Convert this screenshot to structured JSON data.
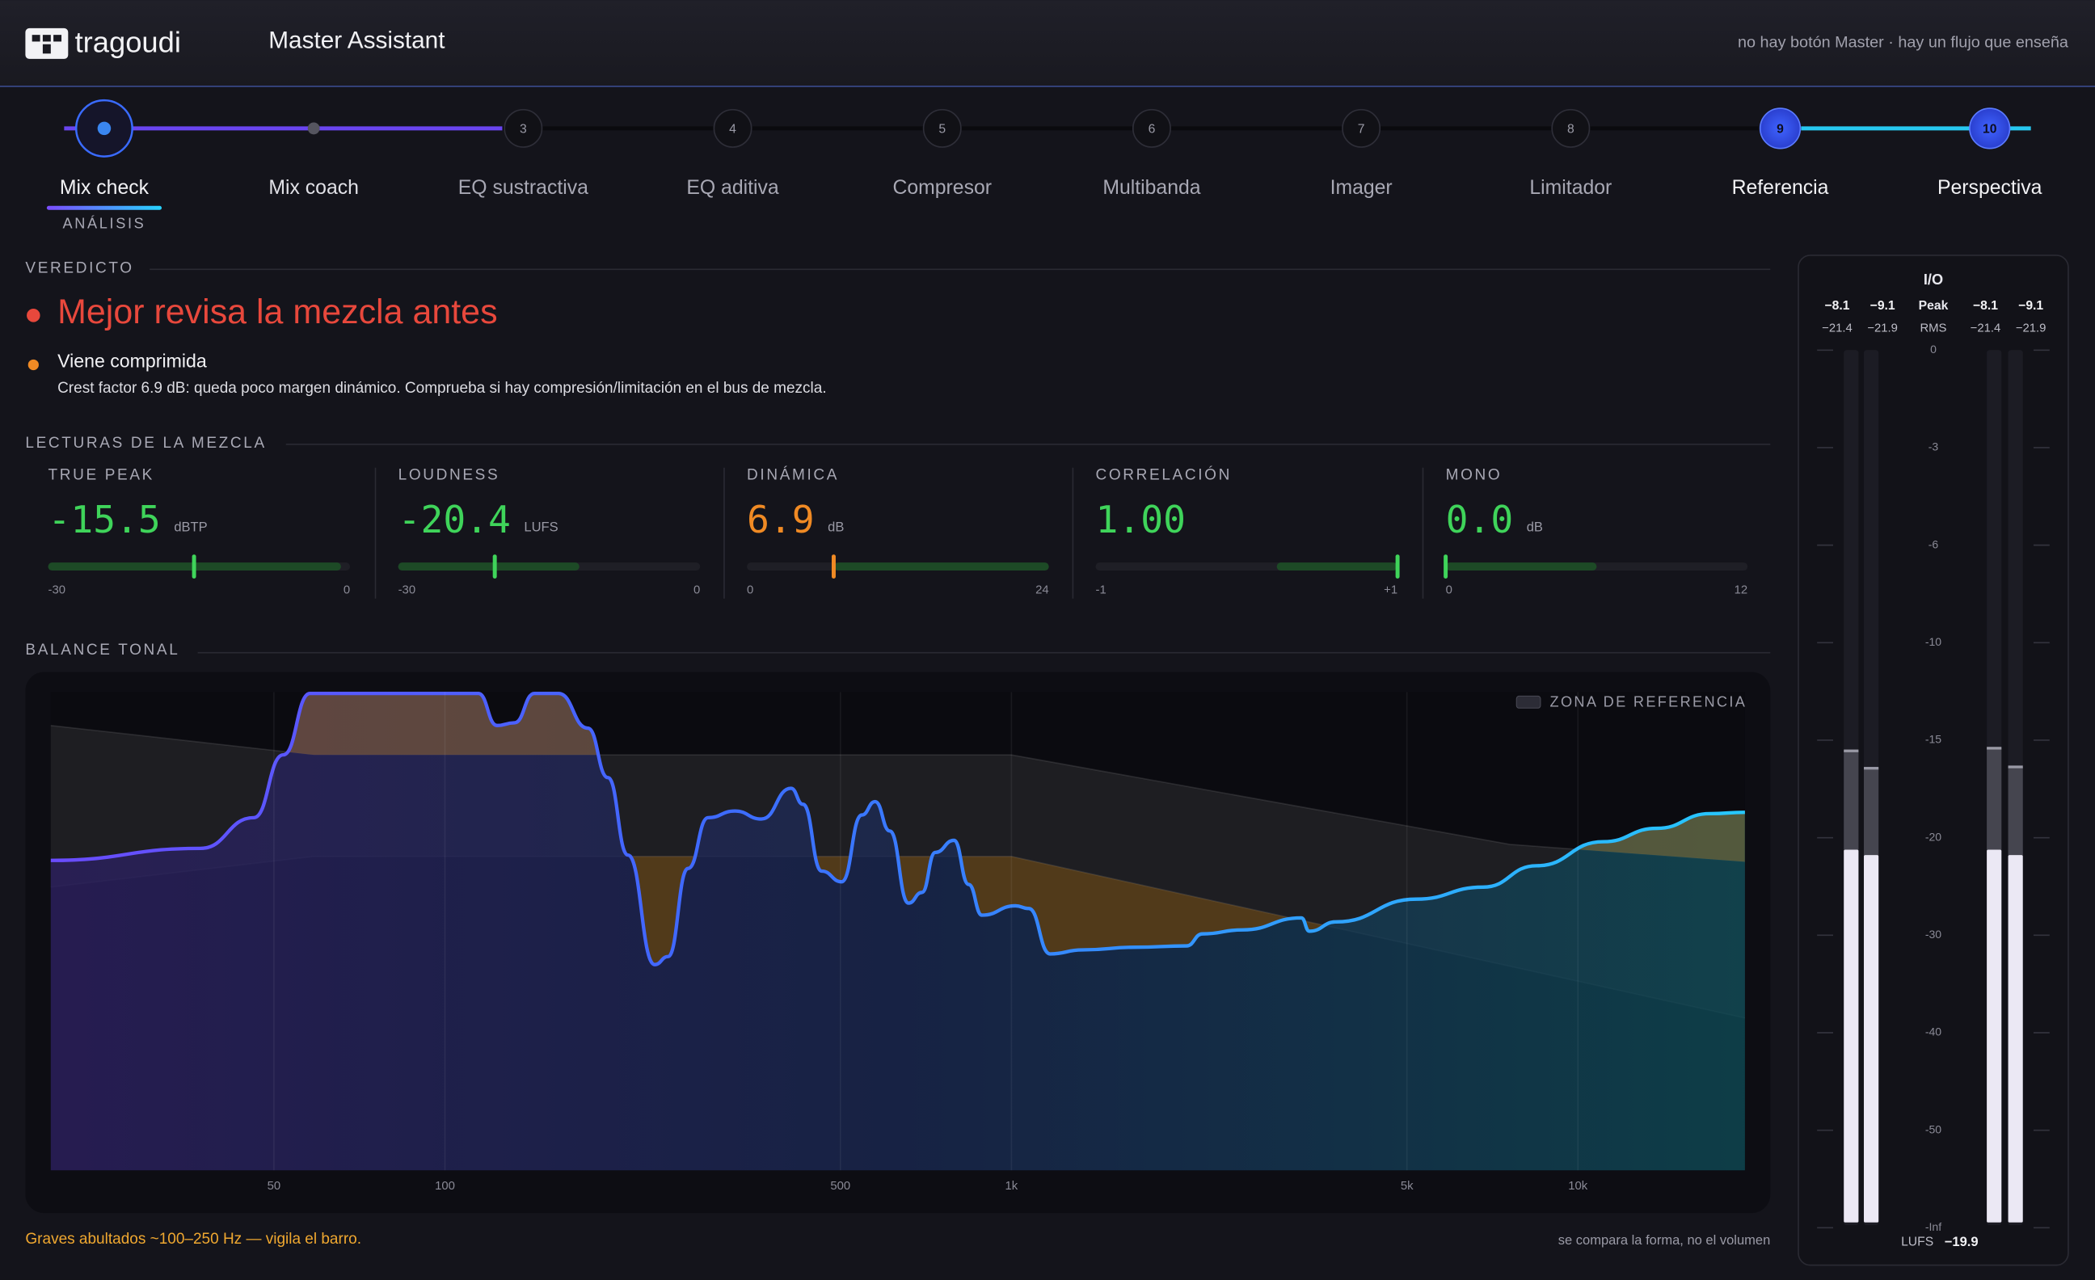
{
  "header": {
    "brand": "tragoudi",
    "title": "Master Assistant",
    "tagline": "no hay botón Master · hay un flujo que enseña"
  },
  "steps": [
    {
      "label": "Mix check",
      "sublabel": "ANÁLISIS"
    },
    {
      "label": "Mix coach"
    },
    {
      "number": "3",
      "label": "EQ sustractiva"
    },
    {
      "number": "4",
      "label": "EQ aditiva"
    },
    {
      "number": "5",
      "label": "Compresor"
    },
    {
      "number": "6",
      "label": "Multibanda"
    },
    {
      "number": "7",
      "label": "Imager"
    },
    {
      "number": "8",
      "label": "Limitador"
    },
    {
      "number": "9",
      "label": "Referencia"
    },
    {
      "number": "10",
      "label": "Perspectiva"
    }
  ],
  "verdict": {
    "heading": "VEREDICTO",
    "title": "Mejor revisa la mezcla antes",
    "issue": "Viene comprimida",
    "detail": "Crest factor 6.9 dB: queda poco margen dinámico. Comprueba si hay compresión/limitación en el bus de mezcla."
  },
  "readings": {
    "heading": "LECTURAS DE LA MEZCLA",
    "items": [
      {
        "label": "TRUE PEAK",
        "value": "-15.5",
        "unit": "dBTP",
        "min": "-30",
        "max": "0",
        "color": "#3fd45a"
      },
      {
        "label": "LOUDNESS",
        "value": "-20.4",
        "unit": "LUFS",
        "min": "-30",
        "max": "0",
        "color": "#3fd45a"
      },
      {
        "label": "DINÁMICA",
        "value": "6.9",
        "unit": "dB",
        "min": "0",
        "max": "24",
        "color": "#f08a24"
      },
      {
        "label": "CORRELACIÓN",
        "value": "1.00",
        "min": "-1",
        "max": "+1",
        "color": "#3fd45a"
      },
      {
        "label": "MONO",
        "value": "0.0",
        "unit": "dB",
        "min": "0",
        "max": "12",
        "color": "#3fd45a"
      }
    ]
  },
  "tonal_balance": {
    "heading": "BALANCE TONAL",
    "legend": "ZONA DE REFERENCIA",
    "freq_labels": [
      "50",
      "100",
      "500",
      "1k",
      "5k",
      "10k"
    ],
    "note": "Graves abultados ~100–250 Hz — vigila el barro.",
    "footnote": "se compara la forma, no el volumen"
  },
  "meters": {
    "title": "I/O",
    "peak_label": "Peak",
    "rms_label": "RMS",
    "input": {
      "peak": [
        "−8.1",
        "−9.1"
      ],
      "rms": [
        "−21.4",
        "−21.9"
      ]
    },
    "output": {
      "peak": [
        "−8.1",
        "−9.1"
      ],
      "rms": [
        "−21.4",
        "−21.9"
      ]
    },
    "scale": [
      "0",
      "-3",
      "-6",
      "-10",
      "-15",
      "-20",
      "-30",
      "-40",
      "-50",
      "-Inf"
    ],
    "lufs_label": "LUFS",
    "lufs": "−19.9"
  }
}
